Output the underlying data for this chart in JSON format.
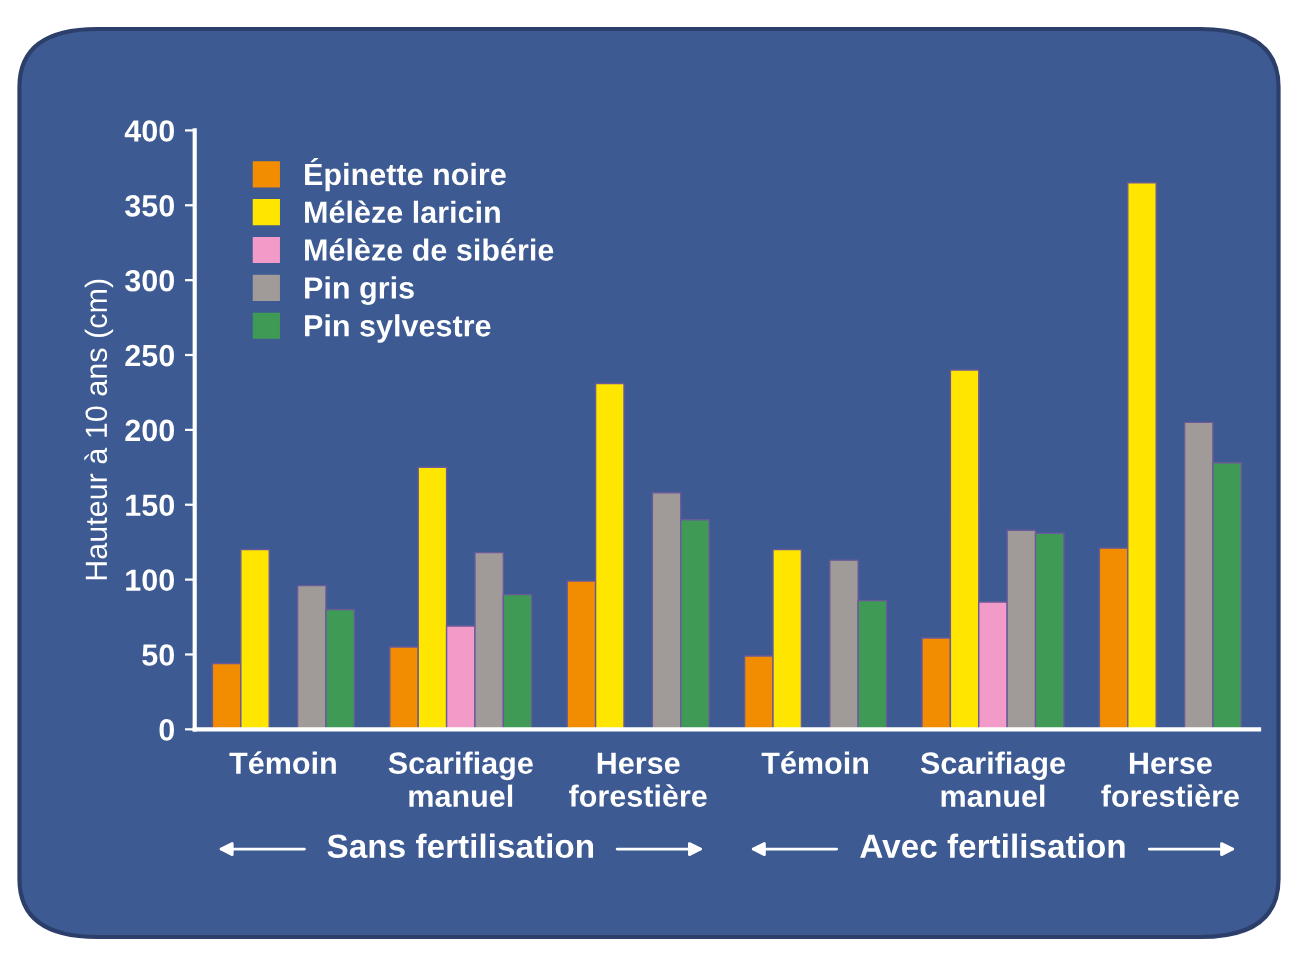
{
  "chart_data": {
    "type": "bar",
    "ylabel": "Hauteur à 10 ans (cm)",
    "categories": [
      "Témoin",
      "Scarifiage\nmanuel",
      "Herse\nforestière",
      "Témoin",
      "Scarifiage\nmanuel",
      "Herse\nforestière"
    ],
    "series": [
      {
        "name": "Épinette noire",
        "color": "#f28c00",
        "values": [
          44,
          55,
          99,
          49,
          61,
          121
        ]
      },
      {
        "name": "Mélèze laricin",
        "color": "#ffe600",
        "values": [
          120,
          175,
          231,
          120,
          240,
          365
        ]
      },
      {
        "name": "Mélèze de sibérie",
        "color": "#f29ac8",
        "values": [
          null,
          69,
          null,
          null,
          85,
          null
        ]
      },
      {
        "name": "Pin gris",
        "color": "#a09a98",
        "values": [
          96,
          118,
          158,
          113,
          133,
          205
        ]
      },
      {
        "name": "Pin sylvestre",
        "color": "#3e9a55",
        "values": [
          80,
          90,
          140,
          86,
          131,
          178
        ]
      }
    ],
    "ylim": [
      0,
      400
    ],
    "yticks": [
      0,
      50,
      100,
      150,
      200,
      250,
      300,
      350,
      400
    ],
    "grid": false,
    "legend": "top left",
    "annotations": [
      "Sans fertilisation",
      "Avec fertilisation"
    ]
  }
}
